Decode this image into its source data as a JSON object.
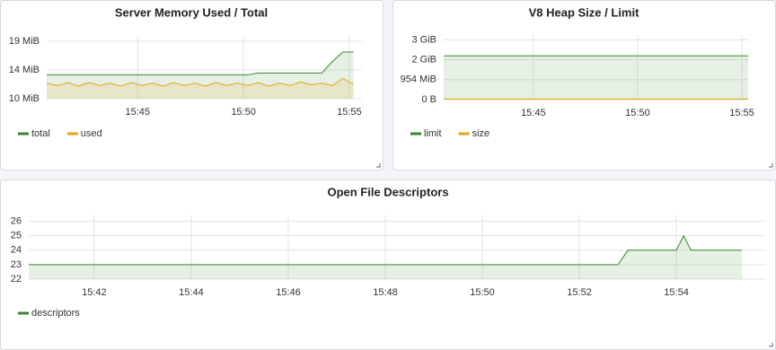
{
  "chart_data": [
    {
      "type": "line",
      "title": "Server Memory Used / Total",
      "x": [
        940.7,
        941.2,
        941.7,
        942.2,
        942.7,
        943.2,
        943.7,
        944.2,
        944.7,
        945.2,
        945.7,
        946.2,
        946.7,
        947.2,
        947.7,
        948.2,
        948.7,
        949.2,
        949.7,
        950.2,
        950.7,
        951.2,
        951.7,
        952.2,
        952.7,
        953.2,
        953.7,
        954.2,
        954.7,
        955.2
      ],
      "series": [
        {
          "name": "total",
          "color": "#37872d",
          "values": [
            13.6,
            13.6,
            13.6,
            13.6,
            13.6,
            13.6,
            13.6,
            13.6,
            13.6,
            13.6,
            13.6,
            13.6,
            13.6,
            13.6,
            13.6,
            13.6,
            13.6,
            13.6,
            13.6,
            13.6,
            13.9,
            13.9,
            13.9,
            13.9,
            13.9,
            13.9,
            13.9,
            15.8,
            17.4,
            17.4
          ]
        },
        {
          "name": "used",
          "color": "#e5a50a",
          "values": [
            12.2,
            11.8,
            12.3,
            11.7,
            12.3,
            11.8,
            12.2,
            11.7,
            12.3,
            11.8,
            12.2,
            11.7,
            12.3,
            11.8,
            12.2,
            11.7,
            12.3,
            11.8,
            12.2,
            11.8,
            12.3,
            11.7,
            12.2,
            11.8,
            12.4,
            11.9,
            12.2,
            11.8,
            13.0,
            12.0
          ]
        }
      ],
      "xlim": [
        940.7,
        955.6
      ],
      "xticks": [
        {
          "value": 945,
          "label": "15:45"
        },
        {
          "value": 950,
          "label": "15:50"
        },
        {
          "value": 955,
          "label": "15:55"
        }
      ],
      "ylim": [
        9.6,
        20.1
      ],
      "yticks": [
        {
          "value": 9.6,
          "label": "10 MiB"
        },
        {
          "value": 14.4,
          "label": "14 MiB"
        },
        {
          "value": 19.2,
          "label": "19 MiB"
        }
      ],
      "grid": true
    },
    {
      "type": "line",
      "title": "V8 Heap Size / Limit",
      "x": [
        940.7,
        955.3
      ],
      "series": [
        {
          "name": "limit",
          "color": "#37872d",
          "values": [
            2200000000,
            2200000000
          ]
        },
        {
          "name": "size",
          "color": "#e5a50a",
          "values": [
            30000000,
            30000000
          ]
        }
      ],
      "xlim": [
        940.7,
        955.3
      ],
      "xticks": [
        {
          "value": 945,
          "label": "15:45"
        },
        {
          "value": 950,
          "label": "15:50"
        },
        {
          "value": 955,
          "label": "15:55"
        }
      ],
      "ylim": [
        0,
        3200000000
      ],
      "yticks": [
        {
          "value": 0,
          "label": "0 B"
        },
        {
          "value": 1000000000,
          "label": "954 MiB"
        },
        {
          "value": 2000000000,
          "label": "2 GiB"
        },
        {
          "value": 3000000000,
          "label": "3 GiB"
        }
      ],
      "grid": true
    },
    {
      "type": "line",
      "title": "Open File Descriptors",
      "x": [
        940.65,
        952.8,
        953.0,
        954.0,
        954.15,
        954.3,
        955.35
      ],
      "series": [
        {
          "name": "descriptors",
          "color": "#37872d",
          "values": [
            23,
            23,
            24,
            24,
            25,
            24,
            24
          ]
        }
      ],
      "xlim": [
        940.65,
        955.85
      ],
      "xticks": [
        {
          "value": 942,
          "label": "15:42"
        },
        {
          "value": 944,
          "label": "15:44"
        },
        {
          "value": 946,
          "label": "15:46"
        },
        {
          "value": 948,
          "label": "15:48"
        },
        {
          "value": 950,
          "label": "15:50"
        },
        {
          "value": 952,
          "label": "15:52"
        },
        {
          "value": 954,
          "label": "15:54"
        }
      ],
      "ylim": [
        22,
        26.4
      ],
      "yticks": [
        22,
        23,
        24,
        25,
        26
      ],
      "grid": true
    }
  ]
}
